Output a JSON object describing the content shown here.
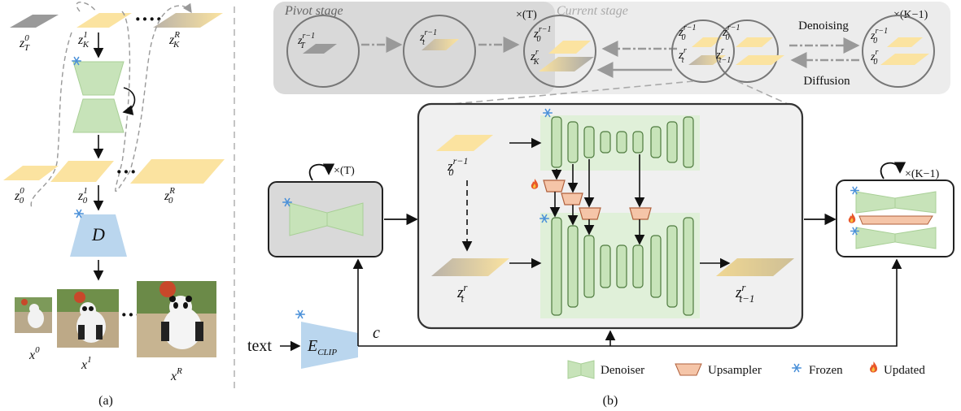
{
  "left_panel": {
    "top_latents": {
      "t1": "z",
      "t1_sup": "0",
      "t1_sub": "T",
      "t2": "z",
      "t2_sup": "1",
      "t2_sub": "K",
      "t3": "z",
      "t3_sup": "R",
      "t3_sub": "K"
    },
    "mid_latents": {
      "m1": "z",
      "m1_sup": "0",
      "m1_sub": "0",
      "m2": "z",
      "m2_sup": "1",
      "m2_sub": "0",
      "m3": "z",
      "m3_sup": "R",
      "m3_sub": "0"
    },
    "decoder_label": "D",
    "images": {
      "x0": "x",
      "x0_sup": "0",
      "x1": "x",
      "x1_sup": "1",
      "xr": "x",
      "xr_sup": "R"
    },
    "caption": "(a)"
  },
  "right_panel": {
    "pivot_stage": "Pivot stage",
    "current_stage": "Current stage",
    "times_T": "×(T)",
    "times_K": "×(K−1)",
    "denoising": "Denoising",
    "diffusion": "Diffusion",
    "circles": {
      "c1": {
        "z": "z",
        "sup": "r−1",
        "sub": "T"
      },
      "c2": {
        "z": "z",
        "sup": "r−1",
        "sub": "t"
      },
      "c3a": {
        "z": "z",
        "sup": "r−1",
        "sub": "0"
      },
      "c3b": {
        "z": "z",
        "sup": "r",
        "sub": "K"
      },
      "c4a": {
        "z": "z",
        "sup": "r−1",
        "sub": "0"
      },
      "c4b": {
        "z": "z",
        "sup": "r",
        "sub": "t"
      },
      "c5a": {
        "z": "z",
        "sup": "r−1",
        "sub": "0"
      },
      "c5b": {
        "z": "z",
        "sup": "r",
        "sub": "t−1"
      },
      "c6a": {
        "z": "z",
        "sup": "r−1",
        "sub": "0"
      },
      "c6b": {
        "z": "z",
        "sup": "r",
        "sub": "0"
      }
    },
    "pivot_loop": "×(T)",
    "current_loop": "×(K−1)",
    "z0_prev": {
      "z": "z",
      "sup": "r−1",
      "sub": "0"
    },
    "zt": {
      "z": "z",
      "sup": "r",
      "sub": "t"
    },
    "zt_minus1": {
      "z": "z",
      "sup": "r",
      "sub": "t−1"
    },
    "text_input": "text",
    "clip_label": "E",
    "clip_sub": "CLIP",
    "c_label": "c",
    "caption": "(b)",
    "legend": {
      "denoiser": "Denoiser",
      "upsampler": "Upsampler",
      "frozen": "Frozen",
      "updated": "Updated"
    }
  },
  "colors": {
    "latent_yellow": "#fbe3a0",
    "latent_gray": "#9a9a9a",
    "denoiser_green": "#c7e3b9",
    "upsampler_orange": "#f5c5a8",
    "decoder_blue": "#bad6ee",
    "stage_gray": "#e0e0e0",
    "snowflake": "#4a90d9",
    "flame": "#e8572a"
  }
}
